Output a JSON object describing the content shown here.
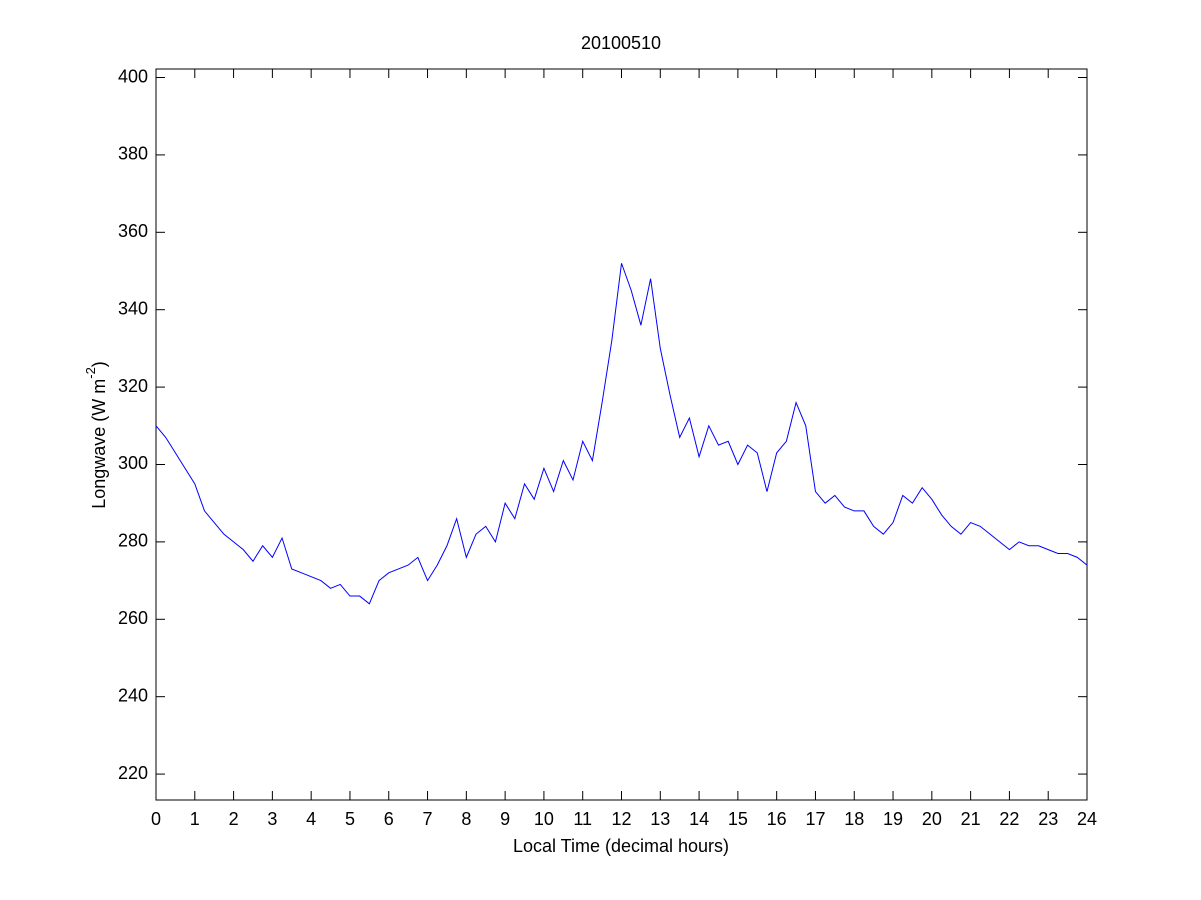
{
  "chart_data": {
    "type": "line",
    "title": "20100510",
    "x_label": "Local Time (decimal hours)",
    "y_label": {
      "text": "Longwave (W m",
      "superscript": "-2",
      "suffix": ")"
    },
    "xlim": [
      0,
      24
    ],
    "xticks": [
      0,
      1,
      2,
      3,
      4,
      5,
      6,
      7,
      8,
      9,
      10,
      11,
      12,
      13,
      14,
      15,
      16,
      17,
      18,
      19,
      20,
      21,
      22,
      23,
      24
    ],
    "ylim": [
      213.3,
      402.2
    ],
    "yticks": [
      220,
      240,
      260,
      280,
      300,
      320,
      340,
      360,
      380,
      400
    ],
    "grid": false,
    "series": [
      {
        "color": "#0000ff",
        "x": [
          0,
          0.25,
          0.5,
          0.75,
          1,
          1.25,
          1.5,
          1.75,
          2,
          2.25,
          2.5,
          2.75,
          3,
          3.25,
          3.5,
          3.75,
          4,
          4.25,
          4.5,
          4.75,
          5,
          5.25,
          5.5,
          5.75,
          6,
          6.25,
          6.5,
          6.75,
          7,
          7.25,
          7.5,
          7.75,
          8,
          8.25,
          8.5,
          8.75,
          9,
          9.25,
          9.5,
          9.75,
          10,
          10.25,
          10.5,
          10.75,
          11,
          11.25,
          11.5,
          11.75,
          12,
          12.25,
          12.5,
          12.75,
          13,
          13.25,
          13.5,
          13.75,
          14,
          14.25,
          14.5,
          14.75,
          15,
          15.25,
          15.5,
          15.75,
          16,
          16.25,
          16.5,
          16.75,
          17,
          17.25,
          17.5,
          17.75,
          18,
          18.25,
          18.5,
          18.75,
          19,
          19.25,
          19.5,
          19.75,
          20,
          20.25,
          20.5,
          20.75,
          21,
          21.25,
          21.5,
          21.75,
          22,
          22.25,
          22.5,
          22.75,
          23,
          23.25,
          23.5,
          23.75,
          24
        ],
        "values": [
          310,
          307,
          303,
          299,
          295,
          288,
          285,
          282,
          280,
          278,
          275,
          279,
          276,
          281,
          273,
          272,
          271,
          270,
          268,
          269,
          266,
          266,
          264,
          270,
          272,
          273,
          274,
          276,
          270,
          274,
          279,
          286,
          276,
          282,
          284,
          280,
          290,
          286,
          295,
          291,
          299,
          293,
          301,
          296,
          306,
          301,
          316,
          332,
          352,
          345,
          336,
          348,
          330,
          318,
          307,
          312,
          302,
          310,
          305,
          306,
          300,
          305,
          303,
          293,
          303,
          306,
          316,
          310,
          293,
          290,
          292,
          289,
          288,
          288,
          284,
          282,
          285,
          292,
          290,
          294,
          291,
          287,
          284,
          282,
          285,
          284,
          282,
          280,
          278,
          280,
          279,
          279,
          278,
          277,
          277,
          276,
          274
        ]
      }
    ]
  }
}
